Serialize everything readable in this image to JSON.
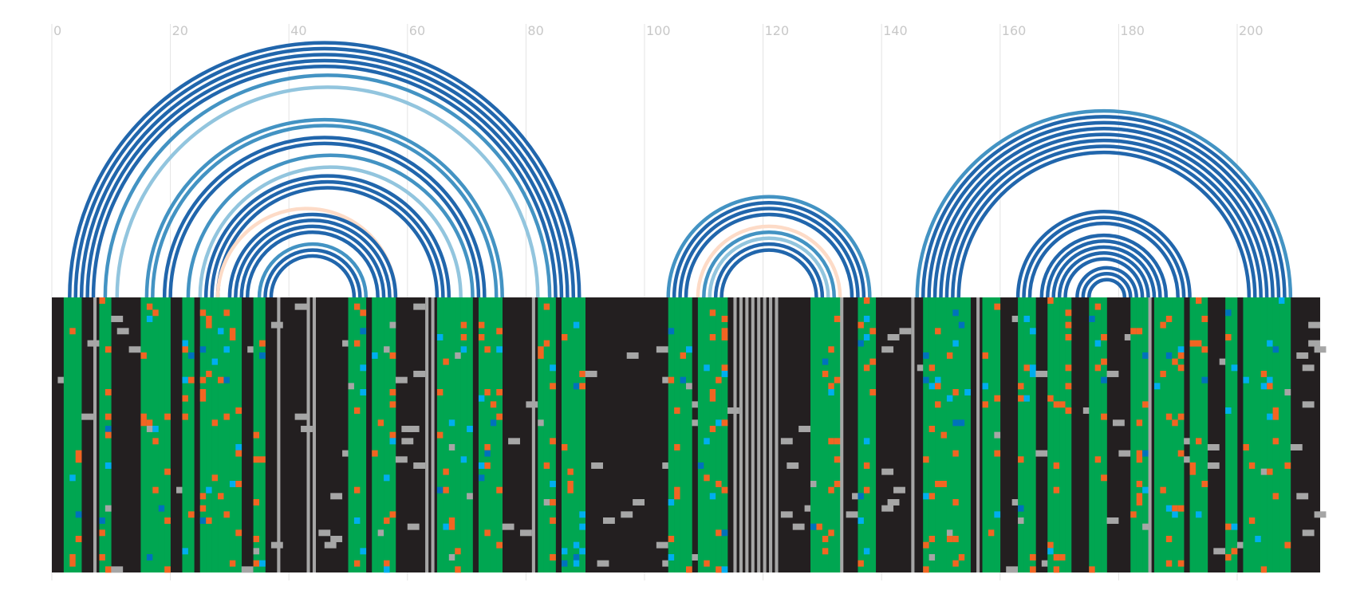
{
  "chart_data": {
    "type": "arc-diagram-with-alignment-heatmap",
    "x_axis": {
      "range": [
        0,
        214
      ],
      "ticks": [
        0,
        20,
        40,
        60,
        80,
        100,
        120,
        140,
        160,
        180,
        200
      ],
      "grid": true
    },
    "colors": {
      "paired": "#00a651",
      "mutated": "#f26522",
      "compensatory": "#00aeef",
      "variant": "#0072bc",
      "gap": "#a6a6a6",
      "unpaired": "#231f20",
      "arc_strong": "#2166ac",
      "arc_medium": "#4393c3",
      "arc_light": "#92c5de",
      "arc_faint": "#fddbc7"
    },
    "rows": 45,
    "unpaired_gap_columns": [
      7,
      22,
      29,
      38,
      43,
      44,
      56,
      57,
      63,
      64,
      65,
      67,
      75,
      81,
      110,
      115,
      116,
      117,
      118,
      119,
      120,
      121,
      122,
      133,
      145,
      156,
      185
    ],
    "paired_columns": [
      [
        2,
        5
      ],
      [
        8,
        10
      ],
      [
        15,
        20
      ],
      [
        22,
        24
      ],
      [
        25,
        28
      ],
      [
        28,
        32
      ],
      [
        34,
        36
      ],
      [
        50,
        53
      ],
      [
        54,
        58
      ],
      [
        65,
        71
      ],
      [
        72,
        76
      ],
      [
        82,
        85
      ],
      [
        86,
        90
      ],
      [
        104,
        108
      ],
      [
        109,
        114
      ],
      [
        128,
        133
      ],
      [
        136,
        139
      ],
      [
        147,
        155
      ],
      [
        157,
        160
      ],
      [
        163,
        166
      ],
      [
        168,
        172
      ],
      [
        175,
        178
      ],
      [
        182,
        185
      ],
      [
        186,
        191
      ],
      [
        192,
        195
      ],
      [
        198,
        200
      ],
      [
        201,
        209
      ]
    ],
    "helices": [
      {
        "start": 3,
        "end": 89,
        "pairs": 5,
        "tone": "arc_strong"
      },
      {
        "start": 9,
        "end": 84,
        "pairs": 1,
        "tone": "arc_medium"
      },
      {
        "start": 11,
        "end": 82,
        "pairs": 1,
        "tone": "arc_light"
      },
      {
        "start": 16,
        "end": 76,
        "pairs": 2,
        "tone": "arc_medium"
      },
      {
        "start": 19,
        "end": 73,
        "pairs": 2,
        "tone": "arc_strong"
      },
      {
        "start": 23,
        "end": 71,
        "pairs": 1,
        "tone": "arc_medium"
      },
      {
        "start": 25,
        "end": 69,
        "pairs": 1,
        "tone": "arc_light"
      },
      {
        "start": 26,
        "end": 67,
        "pairs": 3,
        "tone": "arc_strong"
      },
      {
        "start": 28,
        "end": 58,
        "pairs": 1,
        "tone": "arc_faint"
      },
      {
        "start": 30,
        "end": 58,
        "pairs": 4,
        "tone": "arc_strong"
      },
      {
        "start": 35,
        "end": 53,
        "pairs": 1,
        "tone": "arc_medium"
      },
      {
        "start": 36,
        "end": 52,
        "pairs": 2,
        "tone": "arc_strong"
      },
      {
        "start": 104,
        "end": 138,
        "pairs": 1,
        "tone": "arc_medium"
      },
      {
        "start": 105,
        "end": 137,
        "pairs": 3,
        "tone": "arc_strong"
      },
      {
        "start": 109,
        "end": 133,
        "pairs": 1,
        "tone": "arc_faint"
      },
      {
        "start": 110,
        "end": 132,
        "pairs": 1,
        "tone": "arc_medium"
      },
      {
        "start": 111,
        "end": 131,
        "pairs": 1,
        "tone": "arc_light"
      },
      {
        "start": 112,
        "end": 130,
        "pairs": 2,
        "tone": "arc_strong"
      },
      {
        "start": 146,
        "end": 209,
        "pairs": 1,
        "tone": "arc_medium"
      },
      {
        "start": 147,
        "end": 208,
        "pairs": 7,
        "tone": "arc_strong"
      },
      {
        "start": 163,
        "end": 192,
        "pairs": 3,
        "tone": "arc_strong"
      },
      {
        "start": 167,
        "end": 188,
        "pairs": 3,
        "tone": "arc_strong"
      },
      {
        "start": 170,
        "end": 185,
        "pairs": 2,
        "tone": "arc_strong"
      },
      {
        "start": 173,
        "end": 183,
        "pairs": 3,
        "tone": "arc_strong"
      }
    ]
  }
}
